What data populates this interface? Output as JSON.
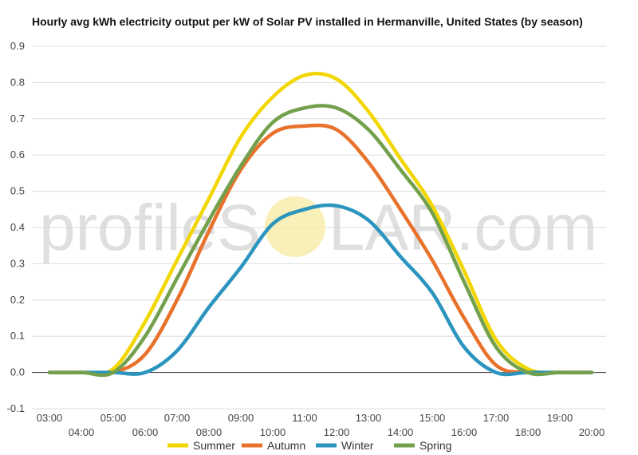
{
  "chart_data": {
    "type": "line",
    "title": "Hourly avg kWh electricity output per kW of Solar PV installed in Hermanville, United States (by season)",
    "xlabel": "",
    "ylabel": "",
    "ylim": [
      -0.1,
      0.9
    ],
    "yticks": [
      "-0.1",
      "0.0",
      "0.1",
      "0.2",
      "0.3",
      "0.4",
      "0.5",
      "0.6",
      "0.7",
      "0.8",
      "0.9"
    ],
    "categories": [
      "03:00",
      "04:00",
      "05:00",
      "06:00",
      "07:00",
      "08:00",
      "09:00",
      "10:00",
      "11:00",
      "12:00",
      "13:00",
      "14:00",
      "15:00",
      "16:00",
      "17:00",
      "18:00",
      "19:00",
      "20:00"
    ],
    "grid": true,
    "legend": "bottom",
    "series": [
      {
        "name": "Summer",
        "color": "#f2d600",
        "values": [
          0.0,
          0.0,
          0.01,
          0.14,
          0.31,
          0.48,
          0.65,
          0.76,
          0.82,
          0.81,
          0.72,
          0.59,
          0.46,
          0.28,
          0.09,
          0.01,
          0.0,
          0.0
        ]
      },
      {
        "name": "Autumn",
        "color": "#e8722c",
        "values": [
          0.0,
          0.0,
          0.0,
          0.05,
          0.2,
          0.39,
          0.56,
          0.66,
          0.68,
          0.67,
          0.58,
          0.45,
          0.31,
          0.15,
          0.02,
          0.0,
          0.0,
          0.0
        ]
      },
      {
        "name": "Winter",
        "color": "#2b94bf",
        "values": [
          0.0,
          0.0,
          0.0,
          0.0,
          0.06,
          0.18,
          0.29,
          0.41,
          0.45,
          0.46,
          0.42,
          0.32,
          0.22,
          0.07,
          0.0,
          0.0,
          0.0,
          0.0
        ]
      },
      {
        "name": "Spring",
        "color": "#73a04c",
        "values": [
          0.0,
          0.0,
          0.0,
          0.1,
          0.26,
          0.42,
          0.57,
          0.69,
          0.73,
          0.73,
          0.67,
          0.56,
          0.44,
          0.25,
          0.07,
          0.0,
          0.0,
          0.0
        ]
      }
    ]
  },
  "watermark": {
    "left": "profileS",
    "right": "LAR.com",
    "sun_color": "#f7e9a0"
  }
}
